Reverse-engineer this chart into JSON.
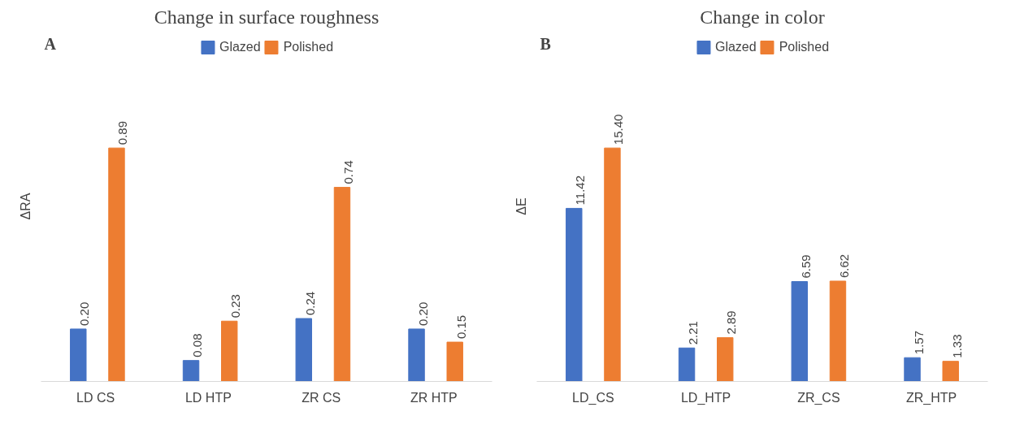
{
  "chart_data": [
    {
      "type": "bar",
      "title": "Change in surface roughness",
      "ylabel": "ΔRA",
      "annotations": [
        "A"
      ],
      "categories": [
        "LD  CS",
        "LD  HTP",
        "ZR  CS",
        "ZR  HTP"
      ],
      "series": [
        {
          "name": "Glazed",
          "color": "#4472c4",
          "values": [
            0.2,
            0.08,
            0.24,
            0.2
          ],
          "value_labels": [
            "0.20",
            "0.08",
            "0.24",
            "0.20"
          ]
        },
        {
          "name": "Polished",
          "color": "#ed7d31",
          "values": [
            0.89,
            0.23,
            0.74,
            0.15
          ],
          "value_labels": [
            "0.89",
            "0.23",
            "0.74",
            "0.15"
          ]
        }
      ],
      "legend": "top",
      "tick_labels": "x"
    },
    {
      "type": "bar",
      "title": "Change in color",
      "ylabel": "ΔE",
      "annotations": [
        "B"
      ],
      "categories": [
        "LD_CS",
        "LD_HTP",
        "ZR_CS",
        "ZR_HTP"
      ],
      "series": [
        {
          "name": "Glazed",
          "color": "#4472c4",
          "values": [
            11.42,
            2.21,
            6.59,
            1.57
          ],
          "value_labels": [
            "11.42",
            "2.21",
            "6.59",
            "1.57"
          ]
        },
        {
          "name": "Polished",
          "color": "#ed7d31",
          "values": [
            15.4,
            2.89,
            6.62,
            1.33
          ],
          "value_labels": [
            "15.40",
            "2.89",
            "6.62",
            "1.33"
          ]
        }
      ],
      "legend": "top",
      "tick_labels": "x"
    }
  ]
}
